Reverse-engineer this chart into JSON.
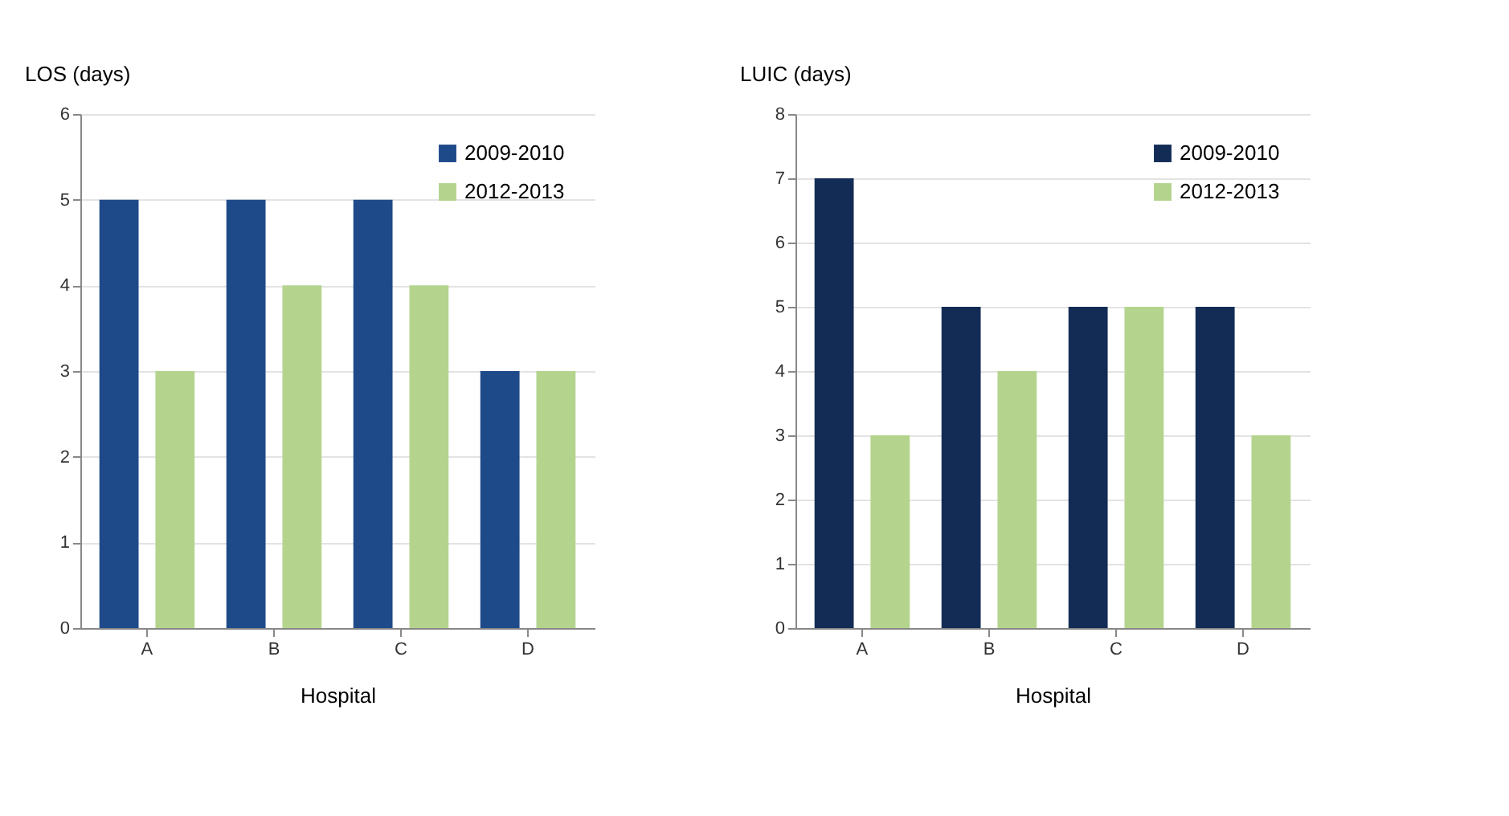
{
  "chart_data": [
    {
      "type": "bar",
      "ylabel": "LOS (days)",
      "xlabel": "Hospital",
      "categories": [
        "A",
        "B",
        "C",
        "D"
      ],
      "series": [
        {
          "name": "2009-2010",
          "color": "#1f4a8a",
          "values": [
            5,
            5,
            5,
            3
          ]
        },
        {
          "name": "2012-2013",
          "color": "#b4d48e",
          "values": [
            3,
            4,
            4,
            3
          ]
        }
      ],
      "ylim": [
        0,
        6
      ],
      "yticks": [
        0,
        1,
        2,
        3,
        4,
        5,
        6
      ],
      "grid": "y",
      "legend": "top right"
    },
    {
      "type": "bar",
      "ylabel": "LUIC (days)",
      "xlabel": "Hospital",
      "categories": [
        "A",
        "B",
        "C",
        "D"
      ],
      "series": [
        {
          "name": "2009-2010",
          "color": "#132c55",
          "values": [
            7,
            5,
            5,
            5
          ]
        },
        {
          "name": "2012-2013",
          "color": "#b4d48e",
          "values": [
            3,
            4,
            5,
            3
          ]
        }
      ],
      "ylim": [
        0,
        8
      ],
      "yticks": [
        0,
        1,
        2,
        3,
        4,
        5,
        6,
        7,
        8
      ],
      "grid": "y",
      "legend": "top right"
    }
  ]
}
